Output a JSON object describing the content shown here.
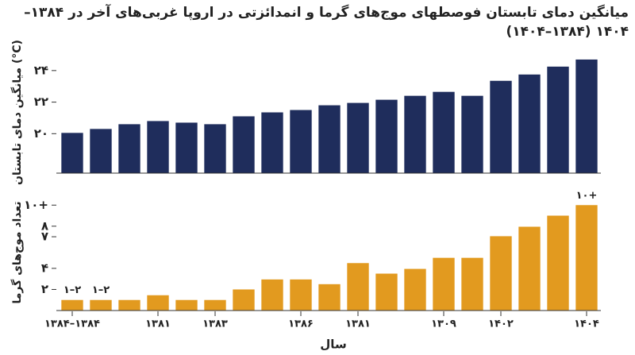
{
  "chart_data": [
    {
      "type": "bar",
      "title": "میانگین دمای تابستان فوصطهای موج‌های گرما و انمدائزتی در اروپا غربی‌های آخر در ۱۳۸۴–۱۴۰۴ (۱۳۸۴–۱۴۰۴)",
      "y_label": "میانگین دمای تابستان (°C)",
      "color": "#1f2d5c",
      "values": [
        20.05,
        20.3,
        20.6,
        20.8,
        20.7,
        20.6,
        21.1,
        21.35,
        21.5,
        21.8,
        21.95,
        22.15,
        22.4,
        22.65,
        22.4,
        23.35,
        23.75,
        24.25,
        24.7
      ],
      "ylim": [
        17.5,
        25.2
      ],
      "yticks": [
        {
          "value": 20,
          "label": "۲۰"
        },
        {
          "value": 22,
          "label": "۲۲"
        },
        {
          "value": 24,
          "label": "۲۴"
        }
      ]
    },
    {
      "type": "bar",
      "y_label": "تعداد موج‌های گرما",
      "x_label": "سال",
      "color": "#e29a1f",
      "categories": [
        "۱۳۸۴–۱۳۸۴",
        null,
        null,
        "۱۳۸۱",
        null,
        "۱۳۸۳",
        null,
        null,
        "۱۳۸۶",
        null,
        "۱۳۸۱",
        null,
        null,
        "۱۳۰۹",
        null,
        "۱۴۰۲",
        null,
        null,
        "۱۴۰۴"
      ],
      "values": [
        1,
        1,
        1,
        1.45,
        1,
        1,
        2,
        2.95,
        2.95,
        2.5,
        4.5,
        3.5,
        3.95,
        5,
        5,
        7.05,
        7.95,
        9,
        10
      ],
      "value_labels": [
        "۱–۲",
        "۱–۲",
        null,
        null,
        null,
        null,
        null,
        null,
        null,
        null,
        null,
        null,
        null,
        null,
        null,
        null,
        null,
        null,
        "۱۰+"
      ],
      "ylim": [
        0,
        11
      ],
      "yticks": [
        {
          "value": 2,
          "label": "۲"
        },
        {
          "value": 4,
          "label": "۴"
        },
        {
          "value": 7,
          "label": "۷"
        },
        {
          "value": 8,
          "label": "۸"
        },
        {
          "value": 10,
          "label": "۱۰+"
        }
      ]
    }
  ]
}
